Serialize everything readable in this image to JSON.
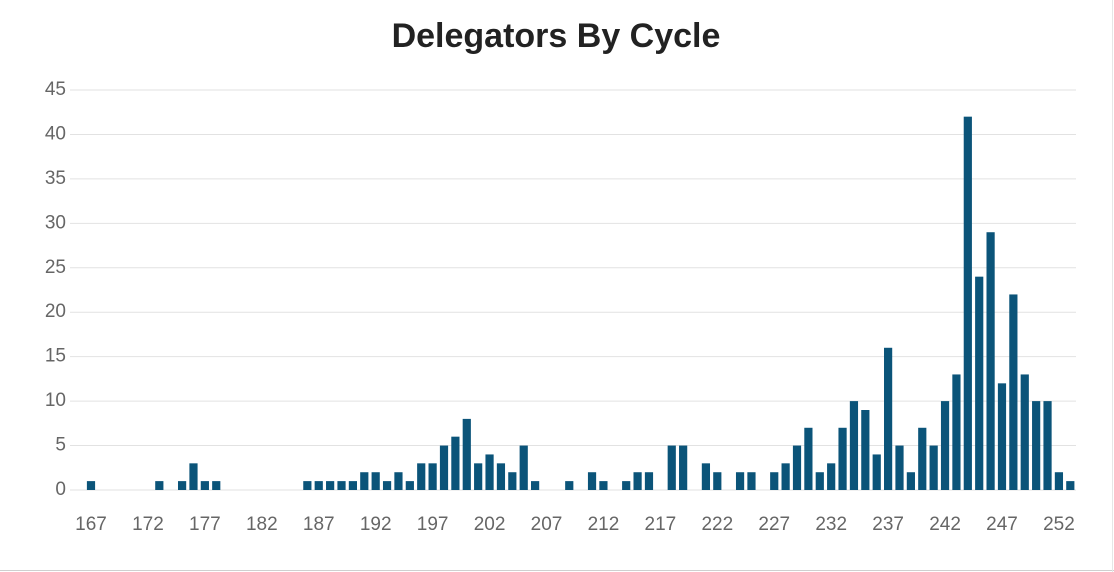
{
  "chart_data": {
    "type": "bar",
    "title": "Delegators By Cycle",
    "categories": [
      "167",
      null,
      null,
      null,
      null,
      "172",
      null,
      null,
      null,
      null,
      "177",
      null,
      null,
      null,
      null,
      "182",
      null,
      null,
      null,
      null,
      "187",
      null,
      null,
      null,
      null,
      "192",
      null,
      null,
      null,
      null,
      "197",
      null,
      null,
      null,
      null,
      "202",
      null,
      null,
      null,
      null,
      "207",
      null,
      null,
      null,
      null,
      "212",
      null,
      null,
      null,
      null,
      "217",
      null,
      null,
      null,
      null,
      "222",
      null,
      null,
      null,
      null,
      "227",
      null,
      null,
      null,
      null,
      "232",
      null,
      null,
      null,
      null,
      "237",
      null,
      null,
      null,
      null,
      "242",
      null,
      null,
      null,
      null,
      "247",
      null,
      null,
      null,
      null,
      "252",
      null
    ],
    "values": [
      1,
      0,
      0,
      0,
      0,
      0,
      1,
      0,
      1,
      3,
      1,
      1,
      0,
      0,
      0,
      0,
      0,
      0,
      0,
      1,
      1,
      1,
      1,
      1,
      2,
      2,
      1,
      2,
      1,
      3,
      3,
      5,
      6,
      8,
      3,
      4,
      3,
      2,
      5,
      1,
      0,
      0,
      1,
      0,
      2,
      1,
      0,
      1,
      2,
      2,
      0,
      5,
      5,
      0,
      3,
      2,
      0,
      2,
      2,
      0,
      2,
      3,
      5,
      7,
      2,
      3,
      7,
      10,
      9,
      4,
      16,
      5,
      2,
      7,
      5,
      10,
      13,
      42,
      24,
      29,
      12,
      22,
      13,
      10,
      10,
      2,
      1
    ],
    "color": "#0b5479",
    "ylim": [
      0,
      45
    ],
    "yticks": [
      0,
      5,
      10,
      15,
      20,
      25,
      30,
      35,
      40,
      45
    ],
    "grid": true
  }
}
